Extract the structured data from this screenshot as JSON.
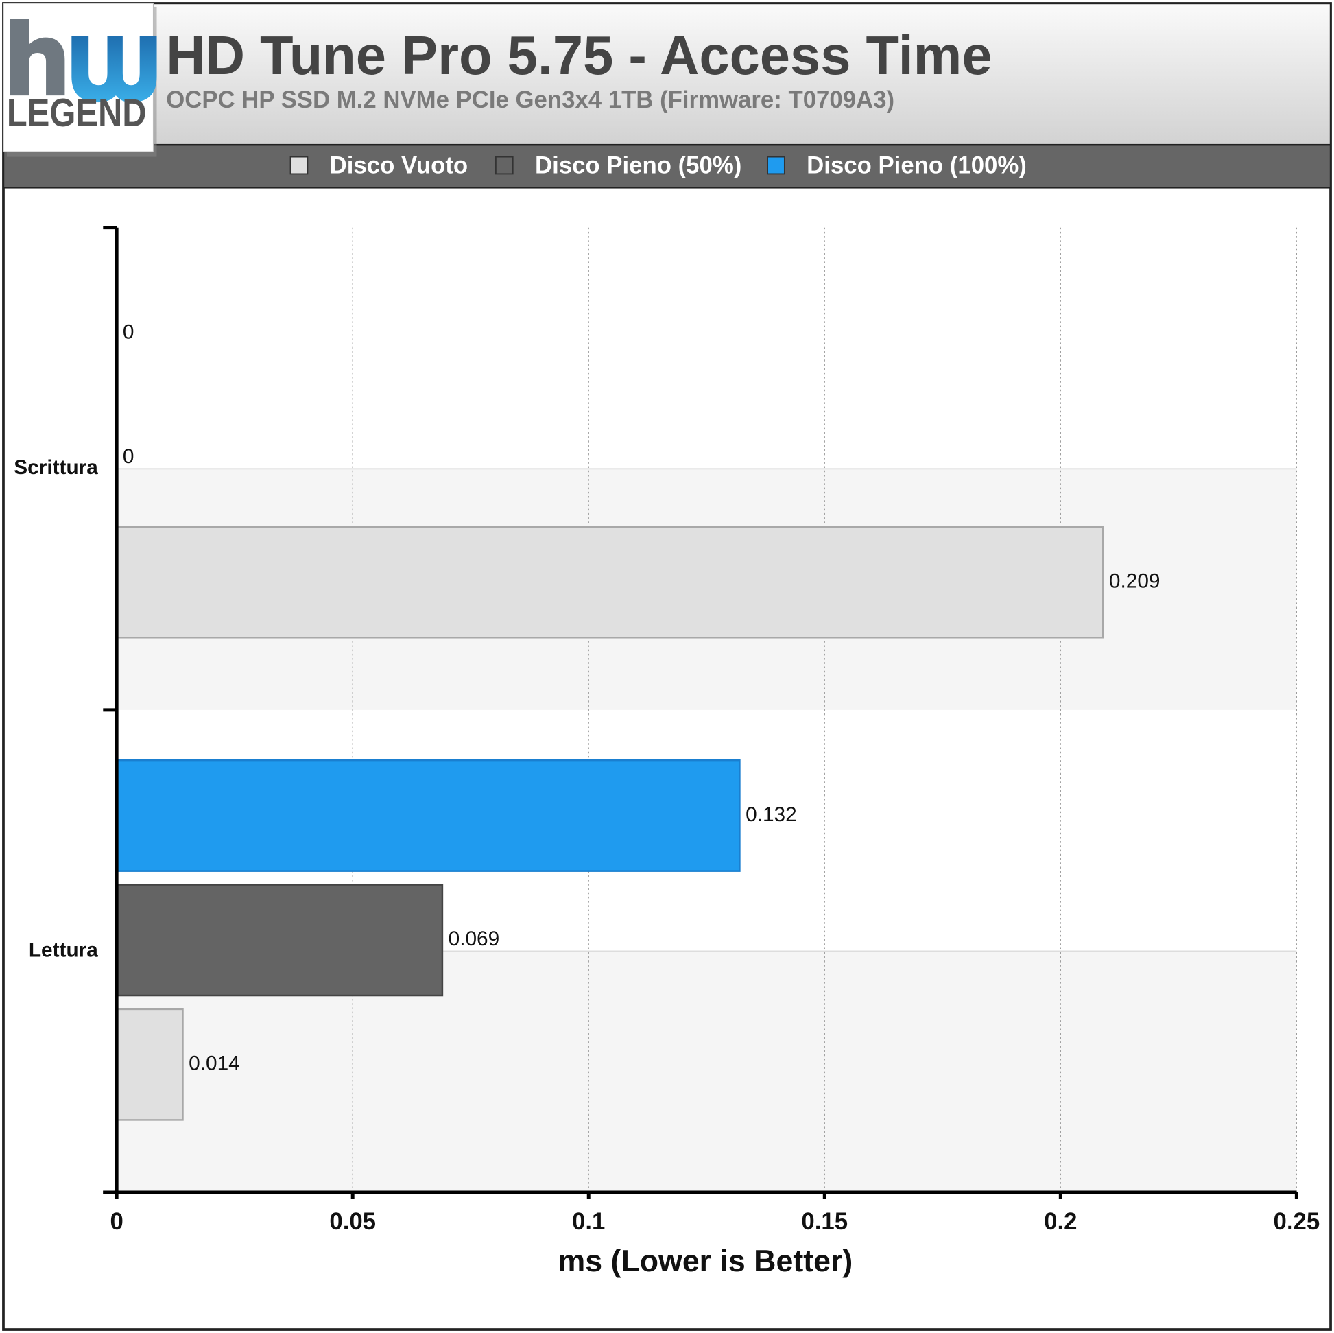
{
  "logo": {
    "text": "LEGEND"
  },
  "chart_data": {
    "type": "hbar",
    "title": "HD Tune Pro 5.75 - Access Time",
    "subtitle": "OCPC HP SSD M.2 NVMe PCIe Gen3x4 1TB (Firmware: T0709A3)",
    "x_label": "ms (Lower is Better)",
    "categories": [
      "Scrittura",
      "Lettura"
    ],
    "series": [
      {
        "name": "Disco Vuoto",
        "color": "#e0e0e0",
        "values": [
          0.209,
          0.014
        ]
      },
      {
        "name": "Disco Pieno (50%)",
        "color": "#646464",
        "values": [
          0,
          0.069
        ]
      },
      {
        "name": "Disco Pieno (100%)",
        "color": "#1f9bef",
        "values": [
          0,
          0.132
        ]
      }
    ],
    "xlim": [
      0,
      0.25
    ],
    "xticks": [
      0,
      0.05,
      0.1,
      0.15,
      0.2,
      0.25
    ],
    "grid": true,
    "legend": "top"
  }
}
